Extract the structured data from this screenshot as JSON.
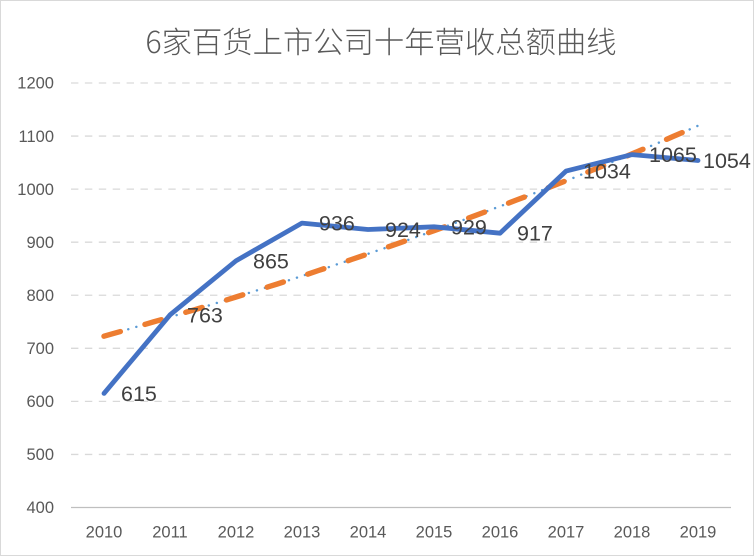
{
  "chart_data": {
    "type": "line",
    "title": "6家百货上市公司十年营收总额曲线",
    "categories": [
      "2010",
      "2011",
      "2012",
      "2013",
      "2014",
      "2015",
      "2016",
      "2017",
      "2018",
      "2019"
    ],
    "series": [
      {
        "values": [
          615,
          763,
          865,
          936,
          924,
          929,
          917,
          1034,
          1065,
          1054
        ],
        "color": "#4472C4",
        "data_labels": true
      }
    ],
    "trendlines": [
      {
        "type": "exponential",
        "style": "dotted",
        "color": "#5B9BD5"
      },
      {
        "type": "exponential",
        "style": "dashed",
        "color": "#ED7D31"
      }
    ],
    "xlabel": "",
    "ylabel": "",
    "ylim": [
      400,
      1200
    ],
    "ytick_step": 100,
    "grid": "dashed-horizontal",
    "legend": "none",
    "colors": {
      "gridline": "#D9D9D9",
      "axis_line": "#BFBFBF",
      "tick_label": "#595959",
      "data_label": "#404040",
      "title": "#595959",
      "background": "#FFFFFF",
      "frame_border": "#D9D9D9"
    }
  }
}
